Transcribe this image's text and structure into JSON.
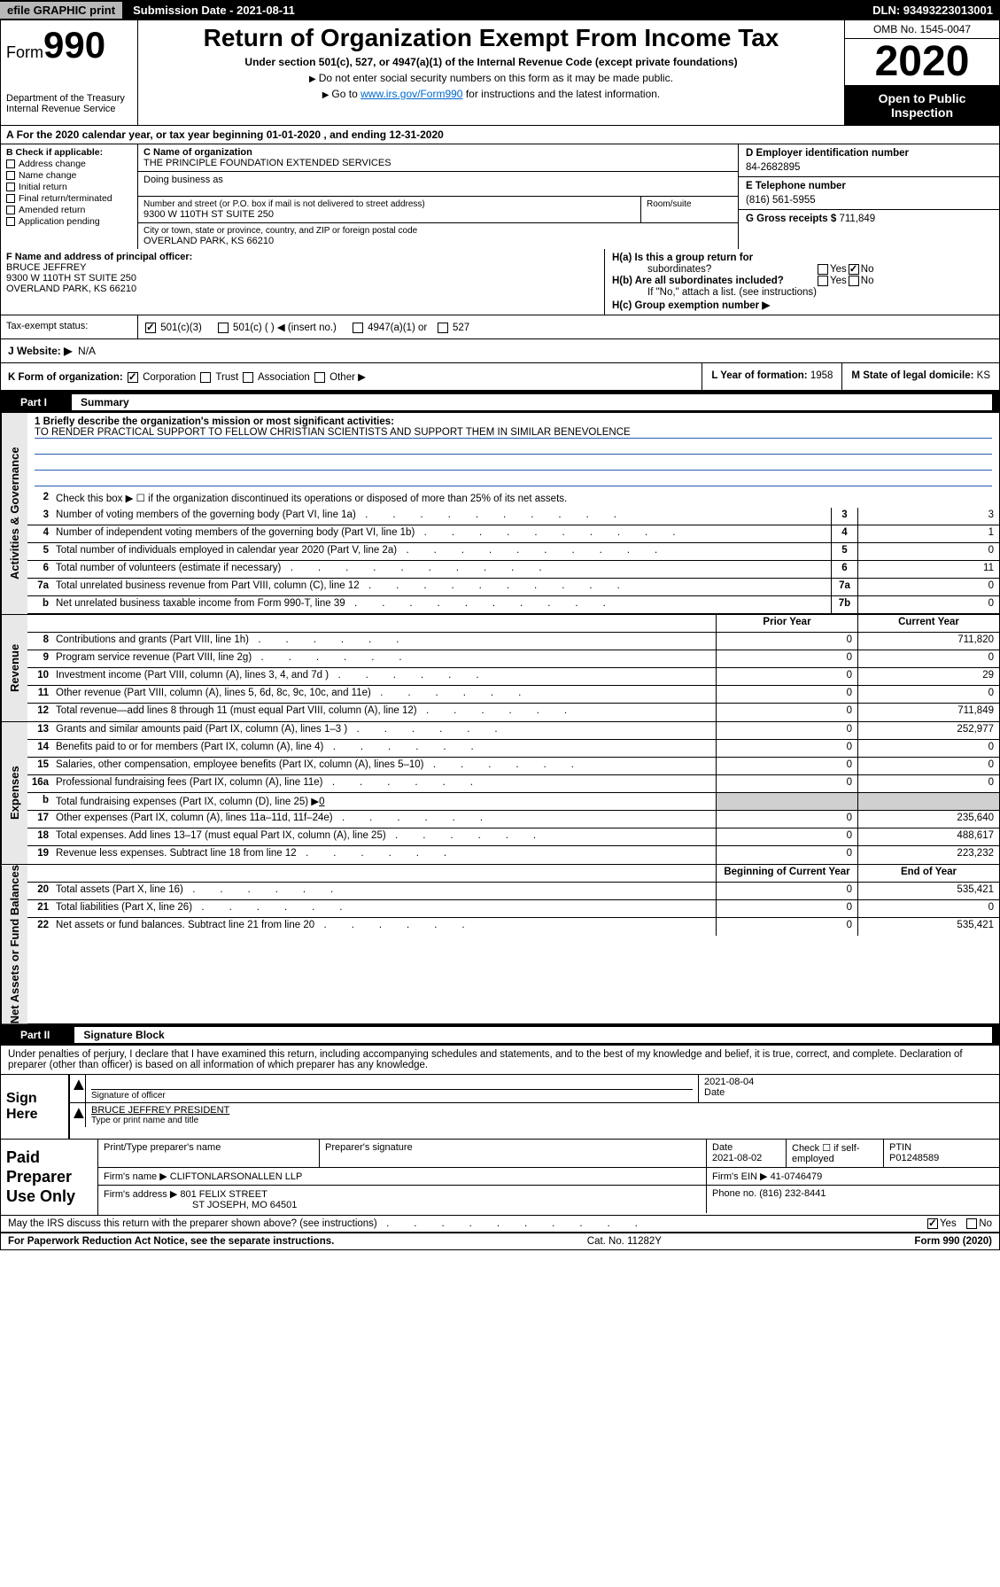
{
  "topbar": {
    "efile": "efile GRAPHIC print",
    "submission": "Submission Date - 2021-08-11",
    "dln": "DLN: 93493223013001"
  },
  "header": {
    "form_label": "Form",
    "form_num": "990",
    "dept": "Department of the Treasury",
    "irs": "Internal Revenue Service",
    "title": "Return of Organization Exempt From Income Tax",
    "sub": "Under section 501(c), 527, or 4947(a)(1) of the Internal Revenue Code (except private foundations)",
    "note1": "Do not enter social security numbers on this form as it may be made public.",
    "note2_pre": "Go to ",
    "note2_link": "www.irs.gov/Form990",
    "note2_post": " for instructions and the latest information.",
    "omb": "OMB No. 1545-0047",
    "year": "2020",
    "open": "Open to Public Inspection"
  },
  "period": {
    "text_pre": "For the 2020 calendar year, or tax year beginning ",
    "begin": "01-01-2020",
    "text_mid": " , and ending ",
    "end": "12-31-2020"
  },
  "boxB": {
    "label": "B Check if applicable:",
    "items": [
      "Address change",
      "Name change",
      "Initial return",
      "Final return/terminated",
      "Amended return",
      "Application pending"
    ]
  },
  "boxC": {
    "name_lbl": "C Name of organization",
    "name": "THE PRINCIPLE FOUNDATION EXTENDED SERVICES",
    "dba_lbl": "Doing business as",
    "dba": "",
    "addr_lbl": "Number and street (or P.O. box if mail is not delivered to street address)",
    "addr": "9300 W 110TH ST SUITE 250",
    "room_lbl": "Room/suite",
    "city_lbl": "City or town, state or province, country, and ZIP or foreign postal code",
    "city": "OVERLAND PARK, KS  66210"
  },
  "boxD": {
    "lbl": "D Employer identification number",
    "val": "84-2682895"
  },
  "boxE": {
    "lbl": "E Telephone number",
    "val": "(816) 561-5955"
  },
  "boxG": {
    "lbl": "G Gross receipts $",
    "val": "711,849"
  },
  "boxF": {
    "lbl": "F Name and address of principal officer:",
    "name": "BRUCE JEFFREY",
    "addr1": "9300 W 110TH ST SUITE 250",
    "addr2": "OVERLAND PARK, KS  66210"
  },
  "boxH": {
    "a_lbl": "H(a)  Is this a group return for",
    "a_sub": "subordinates?",
    "b_lbl": "H(b)  Are all subordinates included?",
    "b_note": "If \"No,\" attach a list. (see instructions)",
    "c_lbl": "H(c)  Group exemption number ▶",
    "yes": "Yes",
    "no": "No"
  },
  "boxI": {
    "lbl": "Tax-exempt status:",
    "opt1": "501(c)(3)",
    "opt2": "501(c) (   ) ◀ (insert no.)",
    "opt3": "4947(a)(1) or",
    "opt4": "527"
  },
  "boxJ": {
    "lbl": "J   Website: ▶",
    "val": "N/A"
  },
  "boxK": {
    "lbl": "K Form of organization:",
    "corp": "Corporation",
    "trust": "Trust",
    "assoc": "Association",
    "other": "Other ▶"
  },
  "boxL": {
    "lbl": "L Year of formation:",
    "val": "1958"
  },
  "boxM": {
    "lbl": "M State of legal domicile:",
    "val": "KS"
  },
  "part1": {
    "label": "Part I",
    "title": "Summary",
    "sections": {
      "governance": "Activities & Governance",
      "revenue": "Revenue",
      "expenses": "Expenses",
      "netassets": "Net Assets or Fund Balances"
    },
    "line1_lbl": "1 Briefly describe the organization's mission or most significant activities:",
    "line1_val": "TO RENDER PRACTICAL SUPPORT TO FELLOW CHRISTIAN SCIENTISTS AND SUPPORT THEM IN SIMILAR BENEVOLENCE",
    "line2": "Check this box ▶ ☐  if the organization discontinued its operations or disposed of more than 25% of its net assets.",
    "prior_hdr": "Prior Year",
    "current_hdr": "Current Year",
    "begin_hdr": "Beginning of Current Year",
    "end_hdr": "End of Year",
    "rows_gov": [
      {
        "n": "3",
        "t": "Number of voting members of the governing body (Part VI, line 1a)",
        "c": "3",
        "v": "3"
      },
      {
        "n": "4",
        "t": "Number of independent voting members of the governing body (Part VI, line 1b)",
        "c": "4",
        "v": "1"
      },
      {
        "n": "5",
        "t": "Total number of individuals employed in calendar year 2020 (Part V, line 2a)",
        "c": "5",
        "v": "0"
      },
      {
        "n": "6",
        "t": "Total number of volunteers (estimate if necessary)",
        "c": "6",
        "v": "11"
      },
      {
        "n": "7a",
        "t": "Total unrelated business revenue from Part VIII, column (C), line 12",
        "c": "7a",
        "v": "0"
      },
      {
        "n": "b",
        "t": "Net unrelated business taxable income from Form 990-T, line 39",
        "c": "7b",
        "v": "0"
      }
    ],
    "rows_rev": [
      {
        "n": "8",
        "t": "Contributions and grants (Part VIII, line 1h)",
        "p": "0",
        "c": "711,820"
      },
      {
        "n": "9",
        "t": "Program service revenue (Part VIII, line 2g)",
        "p": "0",
        "c": "0"
      },
      {
        "n": "10",
        "t": "Investment income (Part VIII, column (A), lines 3, 4, and 7d )",
        "p": "0",
        "c": "29"
      },
      {
        "n": "11",
        "t": "Other revenue (Part VIII, column (A), lines 5, 6d, 8c, 9c, 10c, and 11e)",
        "p": "0",
        "c": "0"
      },
      {
        "n": "12",
        "t": "Total revenue—add lines 8 through 11 (must equal Part VIII, column (A), line 12)",
        "p": "0",
        "c": "711,849"
      }
    ],
    "rows_exp": [
      {
        "n": "13",
        "t": "Grants and similar amounts paid (Part IX, column (A), lines 1–3 )",
        "p": "0",
        "c": "252,977"
      },
      {
        "n": "14",
        "t": "Benefits paid to or for members (Part IX, column (A), line 4)",
        "p": "0",
        "c": "0"
      },
      {
        "n": "15",
        "t": "Salaries, other compensation, employee benefits (Part IX, column (A), lines 5–10)",
        "p": "0",
        "c": "0"
      },
      {
        "n": "16a",
        "t": "Professional fundraising fees (Part IX, column (A), line 11e)",
        "p": "0",
        "c": "0"
      }
    ],
    "row16b": {
      "n": "b",
      "t": "Total fundraising expenses (Part IX, column (D), line 25) ▶",
      "v": "0"
    },
    "rows_exp2": [
      {
        "n": "17",
        "t": "Other expenses (Part IX, column (A), lines 11a–11d, 11f–24e)",
        "p": "0",
        "c": "235,640"
      },
      {
        "n": "18",
        "t": "Total expenses. Add lines 13–17 (must equal Part IX, column (A), line 25)",
        "p": "0",
        "c": "488,617"
      },
      {
        "n": "19",
        "t": "Revenue less expenses. Subtract line 18 from line 12",
        "p": "0",
        "c": "223,232"
      }
    ],
    "rows_net": [
      {
        "n": "20",
        "t": "Total assets (Part X, line 16)",
        "p": "0",
        "c": "535,421"
      },
      {
        "n": "21",
        "t": "Total liabilities (Part X, line 26)",
        "p": "0",
        "c": "0"
      },
      {
        "n": "22",
        "t": "Net assets or fund balances. Subtract line 21 from line 20",
        "p": "0",
        "c": "535,421"
      }
    ]
  },
  "part2": {
    "label": "Part II",
    "title": "Signature Block",
    "perjury": "Under penalties of perjury, I declare that I have examined this return, including accompanying schedules and statements, and to the best of my knowledge and belief, it is true, correct, and complete. Declaration of preparer (other than officer) is based on all information of which preparer has any knowledge."
  },
  "sign": {
    "here": "Sign Here",
    "sig_lbl": "Signature of officer",
    "date": "2021-08-04",
    "date_lbl": "Date",
    "name": "BRUCE JEFFREY PRESIDENT",
    "name_lbl": "Type or print name and title"
  },
  "paid": {
    "lbl": "Paid Preparer Use Only",
    "h1": "Print/Type preparer's name",
    "h2": "Preparer's signature",
    "h3": "Date",
    "date": "2021-08-02",
    "h4": "Check ☐ if self-employed",
    "h5": "PTIN",
    "ptin": "P01248589",
    "firm_name_lbl": "Firm's name    ▶",
    "firm_name": "CLIFTONLARSONALLEN LLP",
    "firm_ein_lbl": "Firm's EIN ▶",
    "firm_ein": "41-0746479",
    "firm_addr_lbl": "Firm's address ▶",
    "firm_addr1": "801 FELIX STREET",
    "firm_addr2": "ST JOSEPH, MO  64501",
    "phone_lbl": "Phone no.",
    "phone": "(816) 232-8441"
  },
  "discuss": {
    "text": "May the IRS discuss this return with the preparer shown above? (see instructions)",
    "yes": "Yes",
    "no": "No"
  },
  "footer": {
    "left": "For Paperwork Reduction Act Notice, see the separate instructions.",
    "mid": "Cat. No. 11282Y",
    "right": "Form 990 (2020)"
  }
}
